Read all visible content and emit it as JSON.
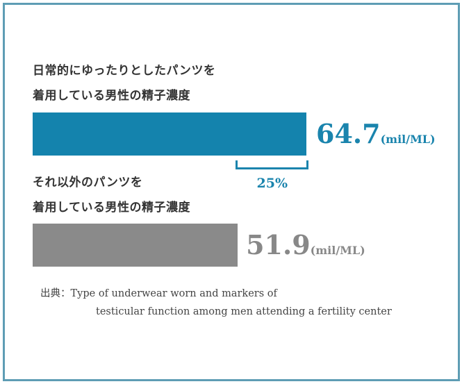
{
  "chart_data": {
    "type": "bar",
    "orientation": "horizontal",
    "categories": [
      [
        "日常的にゆったりとしたパンツを",
        "着用している男性の精子濃度"
      ],
      [
        "それ以外のパンツを",
        "着用している男性の精子濃度"
      ]
    ],
    "values": [
      64.7,
      51.9
    ],
    "value_labels": [
      "64.7",
      "51.9"
    ],
    "unit": "(mil/ML)",
    "colors": [
      "#1483ad",
      "#8a8a8a"
    ],
    "xlim": [
      13.7,
      64.7
    ],
    "annotation": "25%",
    "source_label": "出典：",
    "source_lines": [
      "Type of underwear worn and markers of",
      "testicular function among men attending a fertility center"
    ]
  },
  "frame_color": "#5e9db4"
}
